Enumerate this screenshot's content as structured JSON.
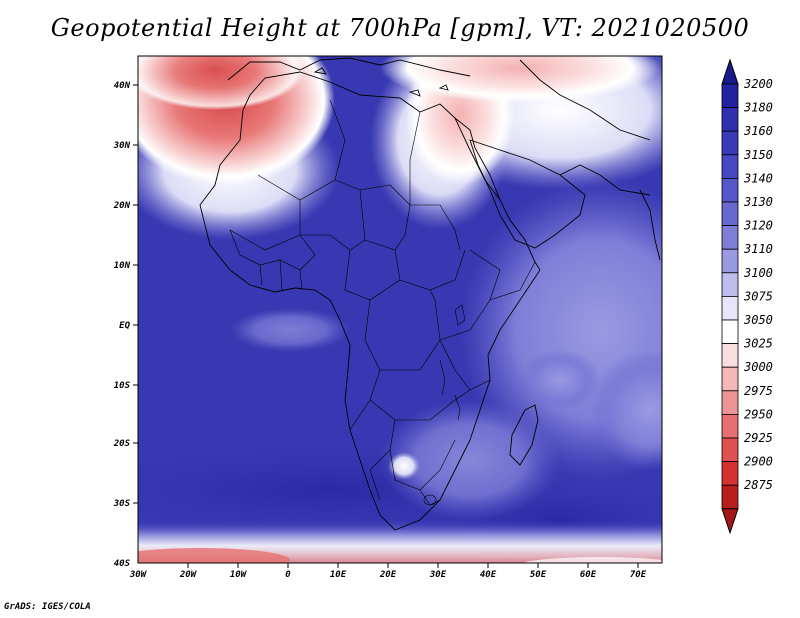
{
  "title": "Geopotential Height at 700hPa [gpm], VT: 2021020500",
  "footer": "GrADS: IGES/COLA",
  "lat_ticks": [
    "40N",
    "30N",
    "20N",
    "10N",
    "EQ",
    "10S",
    "20S",
    "30S",
    "40S"
  ],
  "lon_ticks": [
    "30W",
    "20W",
    "10W",
    "0",
    "10E",
    "20E",
    "30E",
    "40E",
    "50E",
    "60E",
    "70E"
  ],
  "colorbar": {
    "levels": [
      "3200",
      "3180",
      "3160",
      "3150",
      "3140",
      "3130",
      "3120",
      "3110",
      "3100",
      "3075",
      "3050",
      "3025",
      "3000",
      "2975",
      "2950",
      "2925",
      "2900",
      "2875"
    ],
    "colors": [
      "#2222a0",
      "#2f2fb0",
      "#3a3ab8",
      "#4848c2",
      "#5757c9",
      "#6868d0",
      "#7e7ed8",
      "#9a9ae2",
      "#bdbdee",
      "#e6e6f8",
      "#ffffff",
      "#fbdede",
      "#f5b8b8",
      "#ee9494",
      "#e77070",
      "#df5050",
      "#d63232",
      "#b81e1e"
    ],
    "top_color": "#1a1a8c",
    "bottom_color": "#a51515"
  },
  "map": {
    "ocean_color": "#3838b2",
    "land_color": "#3a3ab8",
    "warm_color": "#e25a5a"
  }
}
